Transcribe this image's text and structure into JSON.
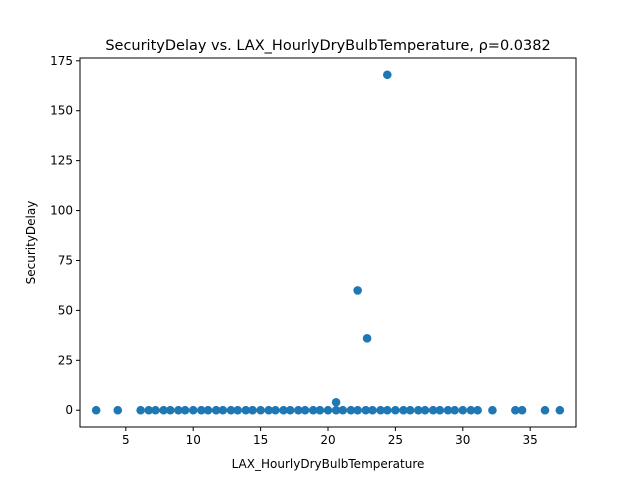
{
  "chart_data": {
    "type": "scatter",
    "title": "SecurityDelay vs. LAX_HourlyDryBulbTemperature, ρ=0.0382",
    "xlabel": "LAX_HourlyDryBulbTemperature",
    "ylabel": "SecurityDelay",
    "xlim": [
      1.6,
      38.4
    ],
    "ylim": [
      -8.4,
      176.4
    ],
    "xticks": [
      5,
      10,
      15,
      20,
      25,
      30,
      35
    ],
    "yticks": [
      0,
      25,
      50,
      75,
      100,
      125,
      150,
      175
    ],
    "grid": false,
    "legend": "none",
    "marker_color": "#1f77b4",
    "series": [
      {
        "points": [
          [
            2.8,
            0
          ],
          [
            4.4,
            0
          ],
          [
            6.1,
            0
          ],
          [
            6.7,
            0
          ],
          [
            7.2,
            0
          ],
          [
            7.8,
            0
          ],
          [
            8.3,
            0
          ],
          [
            8.9,
            0
          ],
          [
            9.4,
            0
          ],
          [
            10.0,
            0
          ],
          [
            10.6,
            0
          ],
          [
            11.1,
            0
          ],
          [
            11.7,
            0
          ],
          [
            12.2,
            0
          ],
          [
            12.8,
            0
          ],
          [
            13.3,
            0
          ],
          [
            13.9,
            0
          ],
          [
            14.4,
            0
          ],
          [
            15.0,
            0
          ],
          [
            15.6,
            0
          ],
          [
            16.1,
            0
          ],
          [
            16.7,
            0
          ],
          [
            17.2,
            0
          ],
          [
            17.8,
            0
          ],
          [
            18.3,
            0
          ],
          [
            18.9,
            0
          ],
          [
            19.4,
            0
          ],
          [
            20.0,
            0
          ],
          [
            20.6,
            0
          ],
          [
            20.6,
            4
          ],
          [
            21.1,
            0
          ],
          [
            21.7,
            0
          ],
          [
            22.2,
            0
          ],
          [
            22.2,
            60
          ],
          [
            22.8,
            0
          ],
          [
            22.9,
            36
          ],
          [
            23.3,
            0
          ],
          [
            23.9,
            0
          ],
          [
            24.4,
            0
          ],
          [
            24.4,
            168
          ],
          [
            25.0,
            0
          ],
          [
            25.6,
            0
          ],
          [
            26.1,
            0
          ],
          [
            26.7,
            0
          ],
          [
            27.2,
            0
          ],
          [
            27.8,
            0
          ],
          [
            28.3,
            0
          ],
          [
            28.9,
            0
          ],
          [
            29.4,
            0
          ],
          [
            30.0,
            0
          ],
          [
            30.6,
            0
          ],
          [
            31.1,
            0
          ],
          [
            32.2,
            0
          ],
          [
            33.9,
            0
          ],
          [
            34.4,
            0
          ],
          [
            36.1,
            0
          ],
          [
            37.2,
            0
          ]
        ]
      }
    ]
  }
}
